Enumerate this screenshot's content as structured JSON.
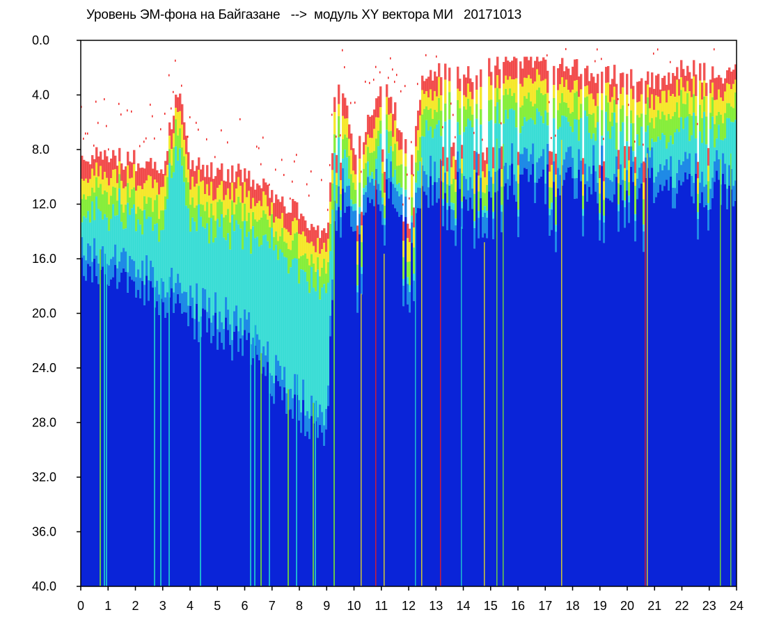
{
  "chart_data": {
    "type": "heatmap",
    "title": "Уровень ЭМ-фона на Байгазане   -->  модуль XY вектора МИ   20171013",
    "xlabel": "",
    "ylabel": "",
    "xlim": [
      0,
      24
    ],
    "ylim": [
      0,
      40
    ],
    "y_inverted": true,
    "x_ticks": [
      "0",
      "1",
      "2",
      "3",
      "4",
      "5",
      "6",
      "7",
      "8",
      "9",
      "10",
      "11",
      "12",
      "13",
      "14",
      "15",
      "16",
      "17",
      "18",
      "19",
      "20",
      "21",
      "22",
      "23",
      "24"
    ],
    "y_ticks": [
      "0.0",
      "4.0",
      "8.0",
      "12.0",
      "16.0",
      "20.0",
      "24.0",
      "28.0",
      "32.0",
      "36.0",
      "40.0"
    ],
    "colors": {
      "low": "#0a24d8",
      "mid_low": "#1f8ae6",
      "mid": "#20d8d0",
      "mid_high": "#7cec2a",
      "high": "#f4e61a",
      "peak": "#ee1c1c",
      "background": "#ffffff"
    },
    "profile_hours": [
      0,
      1,
      2,
      3,
      3.5,
      4,
      5,
      6,
      7,
      8,
      9,
      9.3,
      9.5,
      10,
      11,
      12,
      12.5,
      13,
      14,
      14.5,
      15,
      16,
      17,
      18,
      19,
      20,
      21,
      22,
      23,
      24
    ],
    "signal_top_y": [
      8.2,
      8.6,
      8.8,
      9.0,
      3.5,
      9.2,
      9.6,
      9.8,
      11.5,
      12.5,
      14.5,
      2.5,
      2.5,
      8.8,
      2.5,
      8.5,
      2.5,
      2.0,
      2.2,
      3.0,
      1.5,
      1.5,
      1.5,
      2.0,
      2.5,
      2.5,
      3.0,
      2.0,
      2.5,
      2.5
    ],
    "blue_start_y": [
      15.0,
      15.5,
      16.5,
      18.0,
      18.0,
      19.0,
      20.0,
      21.0,
      24.0,
      26.0,
      27.0,
      10.0,
      10.0,
      10.0,
      10.0,
      10.0,
      10.0,
      9.5,
      9.5,
      9.5,
      9.0,
      9.0,
      9.0,
      9.0,
      9.0,
      9.0,
      9.0,
      9.5,
      9.5,
      9.5
    ]
  }
}
